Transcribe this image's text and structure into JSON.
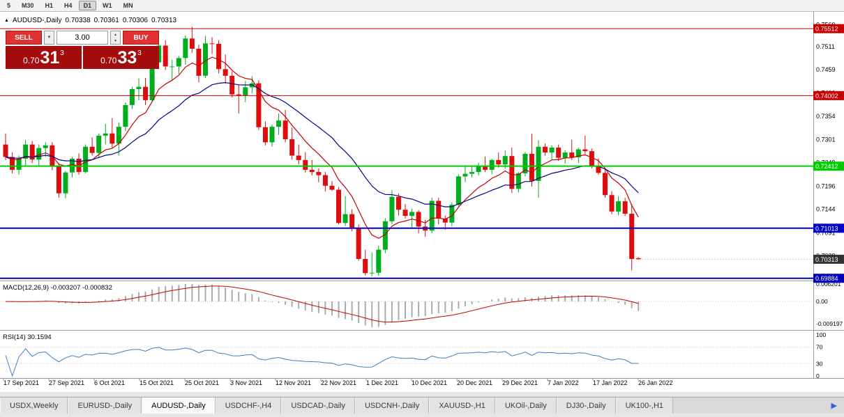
{
  "toolbar": {
    "timeframes": [
      "5",
      "M30",
      "H1",
      "H4",
      "D1",
      "W1",
      "MN"
    ],
    "active": "D1"
  },
  "chart_header": {
    "expand_icon": "▲",
    "title": "AUDUSD-,Daily",
    "ohlc": {
      "open": "0.70338",
      "high": "0.70361",
      "low": "0.70306",
      "close": "0.70313"
    }
  },
  "trade_panel": {
    "sell_label": "SELL",
    "buy_label": "BUY",
    "volume": "3.00",
    "dropdown_icon": "▼",
    "spin_up_icon": "▲",
    "spin_down_icon": "▼",
    "sell_price": {
      "prefix": "0.70",
      "big": "31",
      "sup": "3"
    },
    "buy_price": {
      "prefix": "0.70",
      "big": "33",
      "sup": "3"
    }
  },
  "chart_data": {
    "type": "candlestick",
    "symbol": "AUDUSD-",
    "timeframe": "Daily",
    "current_ohlc": [
      0.70338,
      0.70361,
      0.70306,
      0.70313
    ],
    "price_range": {
      "max": 0.7575,
      "min": 0.6988
    },
    "candle_colors": {
      "up": "#00ad1c",
      "down": "#dd0d0d"
    },
    "candles": [
      [
        0.729,
        0.7315,
        0.7255,
        0.7262
      ],
      [
        0.7262,
        0.7272,
        0.7225,
        0.7233
      ],
      [
        0.7233,
        0.7265,
        0.7222,
        0.7258
      ],
      [
        0.7258,
        0.73,
        0.724,
        0.729
      ],
      [
        0.729,
        0.7298,
        0.7248,
        0.7256
      ],
      [
        0.7256,
        0.729,
        0.7243,
        0.7282
      ],
      [
        0.7282,
        0.7295,
        0.7262,
        0.7288
      ],
      [
        0.7288,
        0.7295,
        0.7232,
        0.724
      ],
      [
        0.724,
        0.7248,
        0.717,
        0.718
      ],
      [
        0.718,
        0.723,
        0.7169,
        0.7227
      ],
      [
        0.7227,
        0.7262,
        0.7216,
        0.7258
      ],
      [
        0.7258,
        0.727,
        0.7222,
        0.7228
      ],
      [
        0.7228,
        0.729,
        0.7225,
        0.7285
      ],
      [
        0.7285,
        0.7306,
        0.7265,
        0.7271
      ],
      [
        0.7271,
        0.7315,
        0.726,
        0.731
      ],
      [
        0.731,
        0.7337,
        0.729,
        0.7315
      ],
      [
        0.7315,
        0.735,
        0.7282,
        0.7292
      ],
      [
        0.7292,
        0.734,
        0.7265,
        0.733
      ],
      [
        0.733,
        0.7385,
        0.732,
        0.7379
      ],
      [
        0.7379,
        0.742,
        0.737,
        0.7415
      ],
      [
        0.7415,
        0.7439,
        0.739,
        0.742
      ],
      [
        0.742,
        0.744,
        0.7379,
        0.739
      ],
      [
        0.739,
        0.7485,
        0.7385,
        0.7475
      ],
      [
        0.7475,
        0.752,
        0.746,
        0.7513
      ],
      [
        0.7513,
        0.7525,
        0.7458,
        0.7466
      ],
      [
        0.7466,
        0.7481,
        0.7433,
        0.7466
      ],
      [
        0.7466,
        0.749,
        0.7449,
        0.7485
      ],
      [
        0.7485,
        0.7536,
        0.747,
        0.7529
      ],
      [
        0.7529,
        0.7555,
        0.7497,
        0.7506
      ],
      [
        0.7506,
        0.7515,
        0.743,
        0.7445
      ],
      [
        0.7445,
        0.7535,
        0.744,
        0.7518
      ],
      [
        0.7518,
        0.7532,
        0.7494,
        0.7517
      ],
      [
        0.7517,
        0.7525,
        0.745,
        0.746
      ],
      [
        0.746,
        0.7493,
        0.7427,
        0.7445
      ],
      [
        0.7445,
        0.7455,
        0.7396,
        0.7403
      ],
      [
        0.7403,
        0.7425,
        0.736,
        0.74
      ],
      [
        0.74,
        0.7433,
        0.7385,
        0.7419
      ],
      [
        0.7419,
        0.7444,
        0.7405,
        0.7428
      ],
      [
        0.7428,
        0.7435,
        0.7323,
        0.7329
      ],
      [
        0.7329,
        0.7342,
        0.7288,
        0.7295
      ],
      [
        0.7295,
        0.7335,
        0.7285,
        0.733
      ],
      [
        0.733,
        0.736,
        0.7312,
        0.7344
      ],
      [
        0.7344,
        0.7368,
        0.7295,
        0.7302
      ],
      [
        0.7302,
        0.7328,
        0.7256,
        0.7265
      ],
      [
        0.7265,
        0.729,
        0.7245,
        0.7255
      ],
      [
        0.7255,
        0.7273,
        0.7227,
        0.7233
      ],
      [
        0.7233,
        0.7255,
        0.722,
        0.7228
      ],
      [
        0.7228,
        0.7236,
        0.7205,
        0.7221
      ],
      [
        0.7221,
        0.7228,
        0.7184,
        0.7197
      ],
      [
        0.7197,
        0.7208,
        0.7185,
        0.7188
      ],
      [
        0.7188,
        0.7194,
        0.711,
        0.7113
      ],
      [
        0.7113,
        0.7174,
        0.7106,
        0.7133
      ],
      [
        0.7133,
        0.7144,
        0.7094,
        0.7102
      ],
      [
        0.7102,
        0.711,
        0.7028,
        0.7032
      ],
      [
        0.7032,
        0.7053,
        0.6995,
        0.7
      ],
      [
        0.7,
        0.7047,
        0.6993,
        0.7001
      ],
      [
        0.7001,
        0.7062,
        0.6994,
        0.7053
      ],
      [
        0.7053,
        0.7124,
        0.7045,
        0.7117
      ],
      [
        0.7117,
        0.7187,
        0.711,
        0.7172
      ],
      [
        0.7172,
        0.718,
        0.713,
        0.7143
      ],
      [
        0.7143,
        0.7156,
        0.7123,
        0.7129
      ],
      [
        0.7129,
        0.7145,
        0.71,
        0.7138
      ],
      [
        0.7138,
        0.7142,
        0.709,
        0.7105
      ],
      [
        0.7105,
        0.712,
        0.7082,
        0.7096
      ],
      [
        0.7096,
        0.717,
        0.709,
        0.7163
      ],
      [
        0.7163,
        0.717,
        0.711,
        0.7123
      ],
      [
        0.7123,
        0.713,
        0.7098,
        0.7114
      ],
      [
        0.7114,
        0.716,
        0.7106,
        0.7154
      ],
      [
        0.7154,
        0.7223,
        0.715,
        0.7218
      ],
      [
        0.7218,
        0.7243,
        0.7205,
        0.7224
      ],
      [
        0.7224,
        0.724,
        0.7216,
        0.7228
      ],
      [
        0.7228,
        0.7249,
        0.722,
        0.7242
      ],
      [
        0.7242,
        0.7263,
        0.7228,
        0.7233
      ],
      [
        0.7233,
        0.7258,
        0.7223,
        0.7255
      ],
      [
        0.7255,
        0.7272,
        0.7238,
        0.7245
      ],
      [
        0.7245,
        0.7277,
        0.7235,
        0.7264
      ],
      [
        0.7264,
        0.7283,
        0.7181,
        0.719
      ],
      [
        0.719,
        0.7228,
        0.7182,
        0.7225
      ],
      [
        0.7225,
        0.7273,
        0.7218,
        0.7269
      ],
      [
        0.7269,
        0.7314,
        0.7195,
        0.7208
      ],
      [
        0.7208,
        0.73,
        0.717,
        0.7285
      ],
      [
        0.7285,
        0.7292,
        0.7265,
        0.7272
      ],
      [
        0.7272,
        0.7288,
        0.7254,
        0.7283
      ],
      [
        0.7283,
        0.729,
        0.7253,
        0.726
      ],
      [
        0.726,
        0.7277,
        0.7247,
        0.7272
      ],
      [
        0.7272,
        0.7301,
        0.7255,
        0.7261
      ],
      [
        0.7261,
        0.7283,
        0.7248,
        0.7279
      ],
      [
        0.7279,
        0.731,
        0.7268,
        0.7275
      ],
      [
        0.7275,
        0.7281,
        0.7236,
        0.7242
      ],
      [
        0.7242,
        0.7258,
        0.7222,
        0.7226
      ],
      [
        0.7226,
        0.7236,
        0.717,
        0.7176
      ],
      [
        0.7176,
        0.7185,
        0.7133,
        0.7139
      ],
      [
        0.7139,
        0.7174,
        0.713,
        0.7162
      ],
      [
        0.7162,
        0.717,
        0.7129,
        0.7134
      ],
      [
        0.7134,
        0.7156,
        0.7006,
        0.7032
      ],
      [
        0.70338,
        0.70361,
        0.70306,
        0.70313
      ]
    ],
    "x_labels": [
      "17 Sep 2021",
      "27 Sep 2021",
      "6 Oct 2021",
      "15 Oct 2021",
      "25 Oct 2021",
      "3 Nov 2021",
      "12 Nov 2021",
      "22 Nov 2021",
      "1 Dec 2021",
      "10 Dec 2021",
      "20 Dec 2021",
      "29 Dec 2021",
      "7 Jan 2022",
      "17 Jan 2022",
      "26 Jan 2022"
    ],
    "price_axis_labels": [
      {
        "t": "0.7560",
        "p": 0.756
      },
      {
        "t": "0.7511",
        "p": 0.7511
      },
      {
        "t": "0.7459",
        "p": 0.7459
      },
      {
        "t": "0.7406",
        "p": 0.7406
      },
      {
        "t": "0.7354",
        "p": 0.7354
      },
      {
        "t": "0.7301",
        "p": 0.7301
      },
      {
        "t": "0.7249",
        "p": 0.7249
      },
      {
        "t": "0.7196",
        "p": 0.7196
      },
      {
        "t": "0.7144",
        "p": 0.7144
      },
      {
        "t": "0.7091",
        "p": 0.7091
      },
      {
        "t": "0.7039",
        "p": 0.7039
      },
      {
        "t": "0.6986",
        "p": 0.6986
      }
    ],
    "hlines": [
      {
        "p": 0.75512,
        "t": "0.75512",
        "color": "#c80000",
        "w": 1
      },
      {
        "p": 0.74002,
        "t": "0.74002",
        "color": "#c80000",
        "w": 1
      },
      {
        "p": 0.72412,
        "t": "0.72412",
        "color": "#00cc00",
        "w": 2
      },
      {
        "p": 0.71013,
        "t": "0.71013",
        "color": "#0000cc",
        "w": 2
      },
      {
        "p": 0.69884,
        "t": "0.69884",
        "color": "#0000bb",
        "w": 2
      }
    ],
    "current_price": {
      "p": 0.70313,
      "t": "0.70313",
      "color": "#333333"
    },
    "moving_averages": [
      {
        "period": 8,
        "color": "#c40000"
      },
      {
        "period": 21,
        "color": "#00008b"
      }
    ],
    "macd": {
      "title": "MACD(12,26,9)",
      "values": "-0.003207 -0.000832",
      "fast": 12,
      "slow": 26,
      "signal": 9,
      "axis": [
        {
          "t": "0.006201",
          "v": 0.0062
        },
        {
          "t": "0.00",
          "v": 0
        },
        {
          "t": "-0.009197",
          "v": -0.0092
        }
      ],
      "hist_color": "#ababab",
      "signal_color": "#c40000"
    },
    "rsi": {
      "title": "RSI(14)",
      "value": "30.1594",
      "period": 14,
      "levels": [
        {
          "t": "100",
          "v": 100
        },
        {
          "t": "70",
          "v": 70
        },
        {
          "t": "30",
          "v": 30
        },
        {
          "t": "0",
          "v": 0
        }
      ],
      "color": "#3e7fc1"
    }
  },
  "tabs": {
    "items": [
      "USDX,Weekly",
      "EURUSD-,Daily",
      "AUDUSD-,Daily",
      "USDCHF-,H4",
      "USDCAD-,Daily",
      "USDCNH-,Daily",
      "XAUUSD-,H1",
      "UKOil-,Daily",
      "DJ30-,Daily",
      "UK100-,H1"
    ],
    "active_index": 2,
    "scroll_arrow": "▶"
  }
}
